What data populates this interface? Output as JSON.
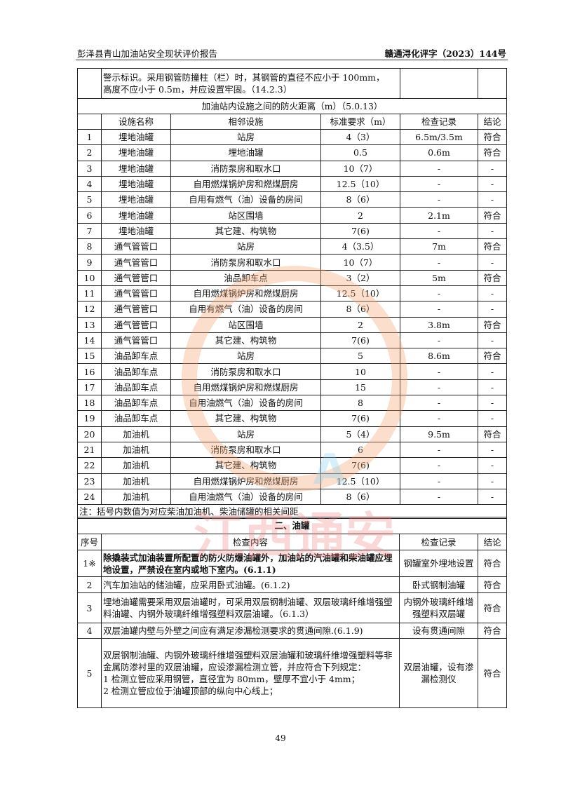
{
  "header": {
    "left": "彭泽县青山加油站安全现状评价报告",
    "right": "赣通浔化评字（2023）144号"
  },
  "continued_row": {
    "content_line1": "警示标识。采用钢管防撞柱（栏）时，其钢管的直径不应小于 100mm，",
    "content_line2": "高度不应小于 0.5m，并应设置牢固。（14.2.3）"
  },
  "distance_table": {
    "title": "加油站内设施之间的防火距离（m）（5.0.13）",
    "columns": [
      "",
      "设施名称",
      "相邻设施",
      "标准要求（m）",
      "检查记录",
      "结论"
    ],
    "rows": [
      [
        "1",
        "埋地油罐",
        "站房",
        "4（3）",
        "6.5m/3.5m",
        "符合"
      ],
      [
        "2",
        "埋地油罐",
        "埋地油罐",
        "0.5",
        "0.6m",
        "符合"
      ],
      [
        "3",
        "埋地油罐",
        "消防泵房和取水口",
        "10（7）",
        "-",
        "-"
      ],
      [
        "4",
        "埋地油罐",
        "自用燃煤锅炉房和燃煤厨房",
        "12.5（10）",
        "-",
        "-"
      ],
      [
        "5",
        "埋地油罐",
        "自用有燃气（油）设备的房间",
        "8（6）",
        "-",
        "-"
      ],
      [
        "6",
        "埋地油罐",
        "站区围墙",
        "2",
        "2.1m",
        "符合"
      ],
      [
        "7",
        "埋地油罐",
        "其它建、构筑物",
        "7(6)",
        "-",
        "-"
      ],
      [
        "8",
        "通气管管口",
        "站房",
        "4（3.5）",
        "7m",
        "符合"
      ],
      [
        "9",
        "通气管管口",
        "消防泵房和取水口",
        "10（7）",
        "-",
        "-"
      ],
      [
        "10",
        "通气管管口",
        "油品卸车点",
        "3（2）",
        "5m",
        "符合"
      ],
      [
        "11",
        "通气管管口",
        "自用燃煤锅炉房和燃煤厨房",
        "12.5（10）",
        "-",
        "-"
      ],
      [
        "12",
        "通气管管口",
        "自用有燃气（油）设备的房间",
        "8（6）",
        "-",
        "-"
      ],
      [
        "13",
        "通气管管口",
        "站区围墙",
        "2",
        "3.8m",
        "符合"
      ],
      [
        "14",
        "通气管管口",
        "其它建、构筑物",
        "7(6)",
        "-",
        "-"
      ],
      [
        "15",
        "油品卸车点",
        "站房",
        "5",
        "8.6m",
        "符合"
      ],
      [
        "16",
        "油品卸车点",
        "消防泵房和取水口",
        "10",
        "-",
        "-"
      ],
      [
        "17",
        "油品卸车点",
        "自用燃煤锅炉房和燃煤厨房",
        "15",
        "-",
        "-"
      ],
      [
        "18",
        "油品卸车点",
        "自用油燃气（油）设备的房间",
        "8",
        "-",
        "-"
      ],
      [
        "19",
        "油品卸车点",
        "其它建、构筑物",
        "7(6)",
        "-",
        "-"
      ],
      [
        "20",
        "加油机",
        "站房",
        "5（4）",
        "9.5m",
        "符合"
      ],
      [
        "21",
        "加油机",
        "消防泵房和取水口",
        "6",
        "-",
        "-"
      ],
      [
        "22",
        "加油机",
        "其它建、构筑物",
        "7(6)",
        "-",
        "-"
      ],
      [
        "23",
        "加油机",
        "自用燃煤锅炉房和燃煤厨房",
        "12.5（10）",
        "-",
        "-"
      ],
      [
        "24",
        "加油机",
        "自用油燃气（油）设备的房间",
        "8（6）",
        "-",
        "-"
      ]
    ],
    "note": "注：括号内数值为对应柴油加油机、柴油储罐的相关间距"
  },
  "tank_section": {
    "title": "二、油罐",
    "columns": [
      "序号",
      "检查内容",
      "检查记录",
      "结论"
    ],
    "rows": [
      {
        "no": "1※",
        "content": "除撬装式加油装置所配置的防火防爆油罐外，加油站的汽油罐和柴油罐应埋地设置，严禁设在室内或地下室内。(6.1.1)",
        "record": "钢罐室外埋地设置",
        "result": "符合"
      },
      {
        "no": "2",
        "content": "汽车加油站的储油罐，应采用卧式油罐。(6.1.2)",
        "record": "卧式钢制油罐",
        "result": "符合"
      },
      {
        "no": "3",
        "content": "埋地油罐需要采用双层油罐时，可采用双层钢制油罐、双层玻璃纤维增强塑料油罐、内钢外玻璃纤维增强塑料双层油罐。（6.1.3）",
        "record": "内钢外玻璃纤维增强塑料双层罐",
        "result": "符合"
      },
      {
        "no": "4",
        "content": "双层油罐内壁与外壁之间应有满足渗漏检测要求的贯通间隙.(6.1.9)",
        "record": "设有贯通间隙",
        "result": "符合"
      },
      {
        "no": "5",
        "content": "双层钢制油罐、内钢外玻璃纤维增强塑料双层油罐和玻璃纤维增强塑料等非金属防渗衬里的双层油罐，应设渗漏检测立管，并应符合下列规定：",
        "sub1": "1 检测立管应采用钢管，直径宜为 80mm，壁厚不宜小于 4mm；",
        "sub2": "2 检测立管应位于油罐顶部的纵向中心线上；",
        "record": "双层油罐，设有渗漏检测仪",
        "result": "符合"
      }
    ]
  },
  "page_number": "49",
  "watermark": {
    "text": "江西通安",
    "colors": {
      "ring": "#f4a06a",
      "text": "#f08080",
      "blue": "#8fd3f0"
    }
  }
}
